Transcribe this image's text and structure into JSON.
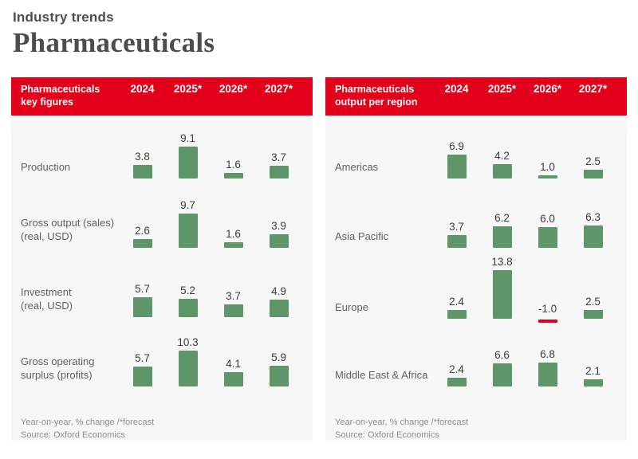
{
  "page": {
    "eyebrow": "Industry trends",
    "title": "Pharmaceuticals"
  },
  "colors": {
    "header_bg": "#e2001a",
    "bar_positive": "#5f9669",
    "bar_negative": "#e2001a",
    "panel_bg": "#f7f7f7"
  },
  "chart_data": [
    {
      "type": "bar",
      "title_line1": "Pharmaceuticals",
      "title_line2": "key figures",
      "columns": [
        "2024",
        "2025*",
        "2026*",
        "2027*"
      ],
      "rows": [
        {
          "label_lines": [
            "Production"
          ],
          "values": [
            3.8,
            9.1,
            1.6,
            3.7
          ]
        },
        {
          "label_lines": [
            "Gross output (sales)",
            "(real, USD)"
          ],
          "values": [
            2.6,
            9.7,
            1.6,
            3.9
          ]
        },
        {
          "label_lines": [
            "Investment",
            "(real, USD)"
          ],
          "values": [
            5.7,
            5.2,
            3.7,
            4.9
          ]
        },
        {
          "label_lines": [
            "Gross operating",
            "surplus (profits)"
          ],
          "values": [
            5.7,
            10.3,
            4.1,
            5.9
          ]
        }
      ],
      "unit_note": "Year-on-year, % change /*forecast",
      "source_note": "Source: Oxford Economics"
    },
    {
      "type": "bar",
      "title_line1": "Pharmaceuticals",
      "title_line2": "output per region",
      "columns": [
        "2024",
        "2025*",
        "2026*",
        "2027*"
      ],
      "rows": [
        {
          "label_lines": [
            "Americas"
          ],
          "values": [
            6.9,
            4.2,
            1.0,
            2.5
          ]
        },
        {
          "label_lines": [
            "Asia Pacific"
          ],
          "values": [
            3.7,
            6.2,
            6.0,
            6.3
          ]
        },
        {
          "label_lines": [
            "Europe"
          ],
          "values": [
            2.4,
            13.8,
            -1.0,
            2.5
          ]
        },
        {
          "label_lines": [
            "Middle East & Africa"
          ],
          "values": [
            2.4,
            6.6,
            6.8,
            2.1
          ]
        }
      ],
      "unit_note": "Year-on-year, % change /*forecast",
      "source_note": "Source: Oxford Economics"
    }
  ]
}
